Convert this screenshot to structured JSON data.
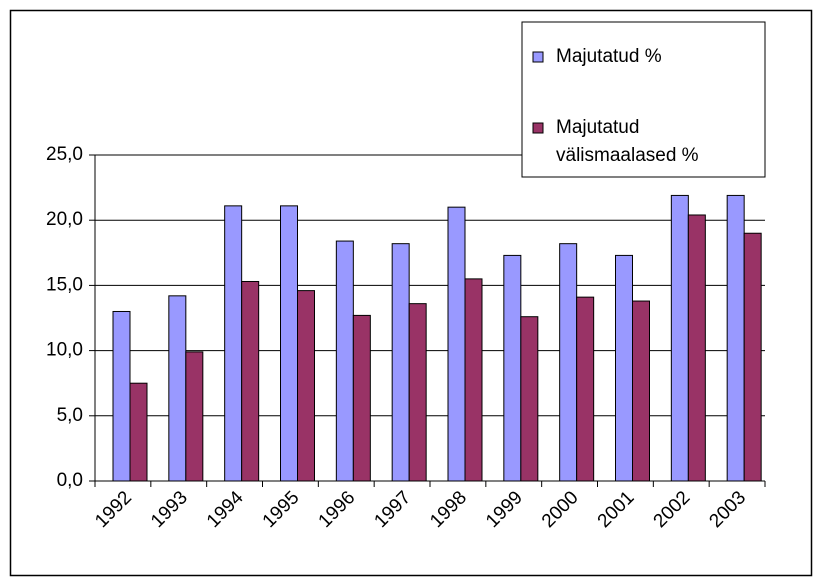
{
  "chart_data": {
    "type": "bar",
    "categories": [
      "1992",
      "1993",
      "1994",
      "1995",
      "1996",
      "1997",
      "1998",
      "1999",
      "2000",
      "2001",
      "2002",
      "2003"
    ],
    "series": [
      {
        "name": "Majutatud %",
        "color": "#9999ff",
        "values": [
          13.0,
          14.2,
          21.1,
          21.1,
          18.4,
          18.2,
          21.0,
          17.3,
          18.2,
          17.3,
          21.9,
          21.9
        ]
      },
      {
        "name": "Majutatud välismaalased %",
        "color": "#993366",
        "values": [
          7.5,
          9.9,
          15.3,
          14.6,
          12.7,
          13.6,
          15.5,
          12.6,
          14.1,
          13.8,
          20.4,
          19.0
        ]
      }
    ],
    "ylim": [
      0,
      25
    ],
    "yticks": [
      {
        "value": 0,
        "label": "0,0"
      },
      {
        "value": 5,
        "label": "5,0"
      },
      {
        "value": 10,
        "label": "10,0"
      },
      {
        "value": 15,
        "label": "15,0"
      },
      {
        "value": 20,
        "label": "20,0"
      },
      {
        "value": 25,
        "label": "25,0"
      }
    ],
    "grid": true,
    "legend": "top-right"
  }
}
